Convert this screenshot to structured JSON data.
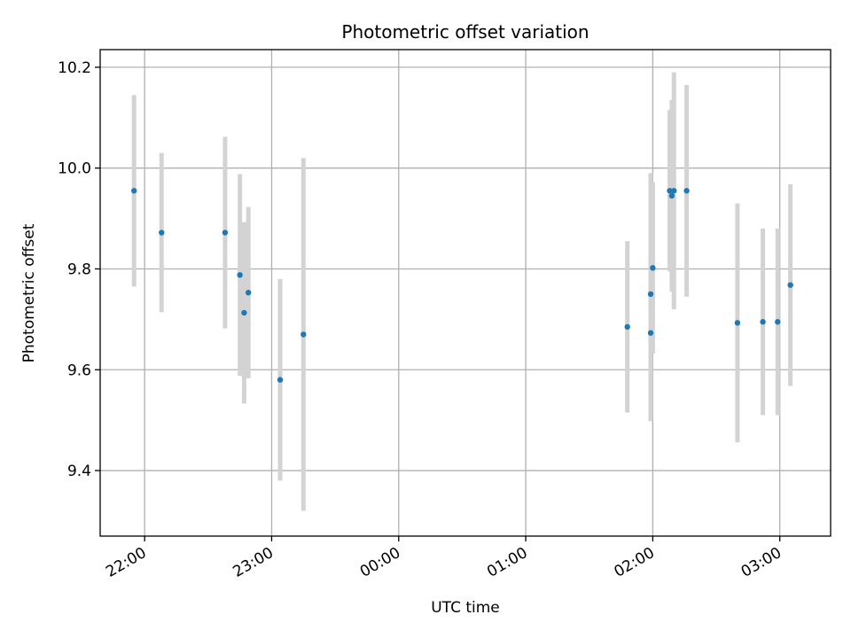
{
  "chart_data": {
    "type": "scatter",
    "title": "Photometric offset variation",
    "xlabel": "UTC time",
    "ylabel": "Photometric offset",
    "x_axis": {
      "unit": "UTC clock time (continuous minutes; ticks past 24:00 wrap to the next day)",
      "range": [
        "21:39",
        "03:24"
      ],
      "ticks": [
        "22:00",
        "23:00",
        "00:00",
        "01:00",
        "02:00",
        "03:00"
      ]
    },
    "y_axis": {
      "range": [
        9.27,
        10.235
      ],
      "ticks": [
        "9.4",
        "9.6",
        "9.8",
        "10.0",
        "10.2"
      ]
    },
    "grid": true,
    "colors": {
      "marker": "#1f77b4",
      "errorbar": "#d3d3d3",
      "grid": "#b0b0b0"
    },
    "points": [
      {
        "time": "21:55",
        "y": 9.955,
        "err": 0.19
      },
      {
        "time": "22:08",
        "y": 9.872,
        "err": 0.158
      },
      {
        "time": "22:38",
        "y": 9.872,
        "err": 0.19
      },
      {
        "time": "22:45",
        "y": 9.788,
        "err": 0.2
      },
      {
        "time": "22:47",
        "y": 9.713,
        "err": 0.18
      },
      {
        "time": "22:49",
        "y": 9.753,
        "err": 0.17
      },
      {
        "time": "23:04",
        "y": 9.58,
        "err": 0.2
      },
      {
        "time": "23:15",
        "y": 9.67,
        "err": 0.35
      },
      {
        "time": "01:48",
        "y": 9.685,
        "err": 0.17
      },
      {
        "time": "01:59",
        "y": 9.75,
        "err": 0.24
      },
      {
        "time": "01:59",
        "y": 9.673,
        "err": 0.175
      },
      {
        "time": "02:00",
        "y": 9.802,
        "err": 0.17
      },
      {
        "time": "02:08",
        "y": 9.955,
        "err": 0.16
      },
      {
        "time": "02:09",
        "y": 9.945,
        "err": 0.19
      },
      {
        "time": "02:10",
        "y": 9.955,
        "err": 0.235
      },
      {
        "time": "02:16",
        "y": 9.955,
        "err": 0.21
      },
      {
        "time": "02:40",
        "y": 9.693,
        "err": 0.237
      },
      {
        "time": "02:52",
        "y": 9.695,
        "err": 0.185
      },
      {
        "time": "02:59",
        "y": 9.695,
        "err": 0.185
      },
      {
        "time": "03:05",
        "y": 9.768,
        "err": 0.2
      }
    ]
  }
}
